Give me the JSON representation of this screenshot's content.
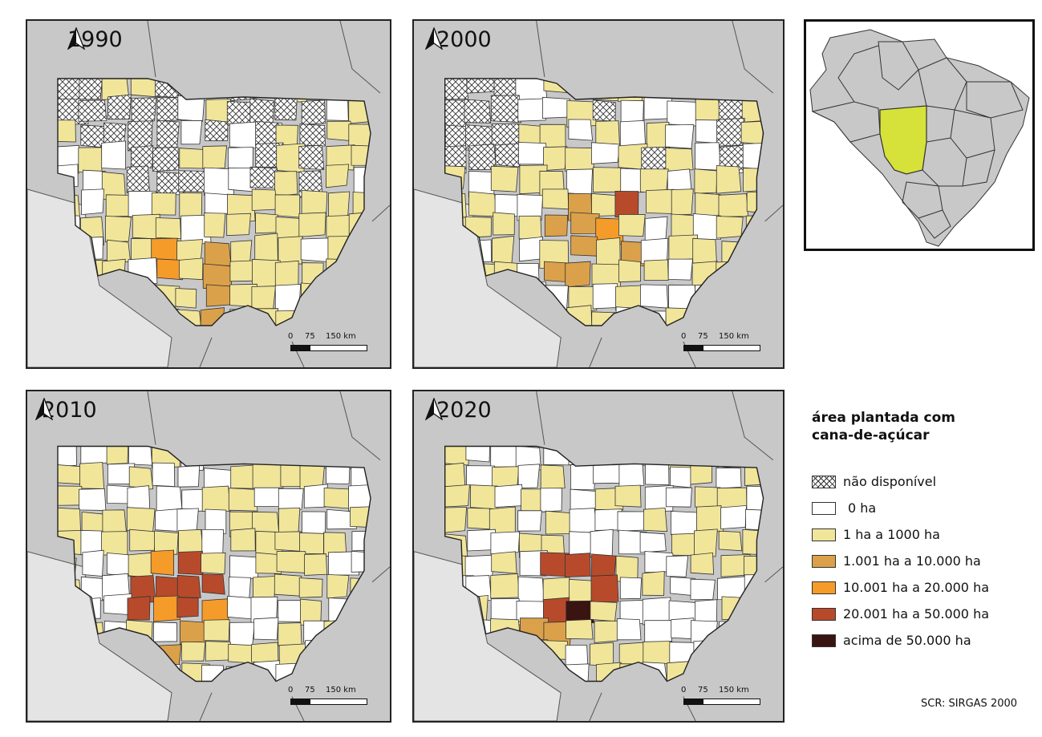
{
  "panels": [
    {
      "year": "1990"
    },
    {
      "year": "2000"
    },
    {
      "year": "2010"
    },
    {
      "year": "2020"
    }
  ],
  "scale": {
    "t0": "0",
    "t1": "75",
    "t2": "150 km"
  },
  "legend": {
    "title": "área plantada com\n cana-de-açúcar",
    "items": [
      {
        "label": "não disponível",
        "color": "#ffffff",
        "hatch": true
      },
      {
        "label": "0 ha",
        "color": "#ffffff"
      },
      {
        "label": "1 ha a 1000 ha",
        "color": "#f1e59a"
      },
      {
        "label": "1.001 ha a 10.000 ha",
        "color": "#dba14a"
      },
      {
        "label": "10.001 ha a 20.000 ha",
        "color": "#f59b2a"
      },
      {
        "label": "20.001 ha a 50.000 ha",
        "color": "#b84a2c"
      },
      {
        "label": "acima de 50.000 ha",
        "color": "#3a1410"
      }
    ]
  },
  "crs": "SCR: SIRGAS 2000",
  "colors": {
    "neighbor": "#c8c8c8",
    "neighbor_light": "#e4e4e4",
    "highlight_state": "#d6e23a",
    "border": "#333333"
  }
}
